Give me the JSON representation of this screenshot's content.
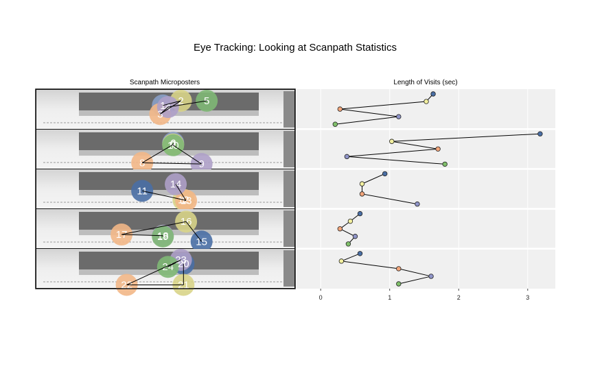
{
  "chart_data": {
    "type": "scatter",
    "title": "Eye Tracking: Looking at Scanpath Statistics",
    "left_panel": {
      "title": "Scanpath Microposters",
      "rows": [
        {
          "fixations": [
            {
              "label": "1",
              "color": "#8aa0c8",
              "x": 0.49,
              "y": 0.4
            },
            {
              "label": "2",
              "color": "#d8d488",
              "x": 0.56,
              "y": 0.28
            },
            {
              "label": "3",
              "color": "#f2b787",
              "x": 0.48,
              "y": 0.62
            },
            {
              "label": "4",
              "color": "#aea0c8",
              "x": 0.51,
              "y": 0.44
            },
            {
              "label": "5",
              "color": "#7fb875",
              "x": 0.66,
              "y": 0.28
            }
          ]
        },
        {
          "fixations": [
            {
              "label": "6",
              "color": "#8aa0c8",
              "x": 0.53,
              "y": 0.34
            },
            {
              "label": "7",
              "color": "#d8d488",
              "x": 0.53,
              "y": 0.38
            },
            {
              "label": "8",
              "color": "#f2b787",
              "x": 0.41,
              "y": 0.85
            },
            {
              "label": "9",
              "color": "#aea0c8",
              "x": 0.64,
              "y": 0.88
            },
            {
              "label": "10",
              "color": "#7fb875",
              "x": 0.53,
              "y": 0.4
            }
          ]
        },
        {
          "fixations": [
            {
              "label": "11",
              "color": "#4a6fa5",
              "x": 0.41,
              "y": 0.55
            },
            {
              "label": "12",
              "color": "#d8d488",
              "x": 0.57,
              "y": 0.78
            },
            {
              "label": "13",
              "color": "#f2b787",
              "x": 0.58,
              "y": 0.8
            },
            {
              "label": "14",
              "color": "#aea0c8",
              "x": 0.54,
              "y": 0.38
            }
          ]
        },
        {
          "fixations": [
            {
              "label": "15",
              "color": "#4a6fa5",
              "x": 0.64,
              "y": 0.83
            },
            {
              "label": "16",
              "color": "#d8d488",
              "x": 0.58,
              "y": 0.32
            },
            {
              "label": "17",
              "color": "#f2b787",
              "x": 0.33,
              "y": 0.65
            },
            {
              "label": "18",
              "color": "#aea0c8",
              "x": 0.49,
              "y": 0.68
            },
            {
              "label": "19",
              "color": "#7fb875",
              "x": 0.49,
              "y": 0.7
            }
          ]
        },
        {
          "fixations": [
            {
              "label": "20",
              "color": "#4a6fa5",
              "x": 0.57,
              "y": 0.38
            },
            {
              "label": "21",
              "color": "#d8d488",
              "x": 0.57,
              "y": 0.92
            },
            {
              "label": "22",
              "color": "#f2b787",
              "x": 0.35,
              "y": 0.92
            },
            {
              "label": "23",
              "color": "#aea0c8",
              "x": 0.56,
              "y": 0.28
            },
            {
              "label": "24",
              "color": "#7fb875",
              "x": 0.51,
              "y": 0.46
            }
          ]
        }
      ]
    },
    "right_panel": {
      "title": "Length of Visits (sec)",
      "xlim": [
        -0.35,
        3.4
      ],
      "xticks": [
        "0",
        "1",
        "2",
        "3"
      ],
      "grid": true,
      "rows": [
        {
          "points": [
            {
              "x": 1.63,
              "color": "#4a6fa5"
            },
            {
              "x": 1.53,
              "color": "#f3f0a0"
            },
            {
              "x": 0.28,
              "color": "#f2a57a"
            },
            {
              "x": 1.13,
              "color": "#8f94c8"
            },
            {
              "x": 0.21,
              "color": "#7fbf6a"
            }
          ]
        },
        {
          "points": [
            {
              "x": 3.18,
              "color": "#4a6fa5"
            },
            {
              "x": 1.03,
              "color": "#f3f0a0"
            },
            {
              "x": 1.7,
              "color": "#f2a57a"
            },
            {
              "x": 0.38,
              "color": "#8f94c8"
            },
            {
              "x": 1.8,
              "color": "#7fbf6a"
            }
          ]
        },
        {
          "points": [
            {
              "x": 0.93,
              "color": "#4a6fa5"
            },
            {
              "x": 0.6,
              "color": "#f3f0a0"
            },
            {
              "x": 0.6,
              "color": "#f2a57a"
            },
            {
              "x": 1.4,
              "color": "#8f94c8"
            }
          ]
        },
        {
          "points": [
            {
              "x": 0.57,
              "color": "#4a6fa5"
            },
            {
              "x": 0.43,
              "color": "#f3f0a0"
            },
            {
              "x": 0.28,
              "color": "#f2a57a"
            },
            {
              "x": 0.5,
              "color": "#8f94c8"
            },
            {
              "x": 0.4,
              "color": "#7fbf6a"
            }
          ]
        },
        {
          "points": [
            {
              "x": 0.57,
              "color": "#4a6fa5"
            },
            {
              "x": 0.3,
              "color": "#f3f0a0"
            },
            {
              "x": 1.13,
              "color": "#f2a57a"
            },
            {
              "x": 1.6,
              "color": "#8f94c8"
            },
            {
              "x": 1.13,
              "color": "#7fbf6a"
            }
          ]
        }
      ]
    }
  }
}
